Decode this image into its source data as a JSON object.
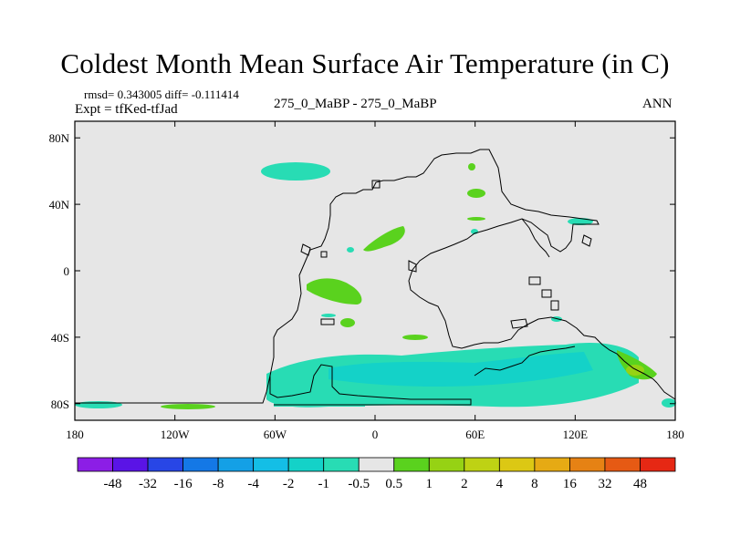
{
  "title": "Coldest Month Mean Surface Air Temperature (in C)",
  "stats_line": "rmsd= 0.343005  diff= -0.111414",
  "experiment_line": "Expt = tfKed-tfJad",
  "center_label": "275_0_MaBP - 275_0_MaBP",
  "period_label": "ANN",
  "map": {
    "background_color": "#e6e6e6",
    "lon_range": [
      -180,
      180
    ],
    "lat_range": [
      -90,
      90
    ],
    "x_ticks": [
      {
        "lon": -180,
        "label": "180"
      },
      {
        "lon": -120,
        "label": "120W"
      },
      {
        "lon": -60,
        "label": "60W"
      },
      {
        "lon": 0,
        "label": "0"
      },
      {
        "lon": 60,
        "label": "60E"
      },
      {
        "lon": 120,
        "label": "120E"
      },
      {
        "lon": 180,
        "label": "180"
      }
    ],
    "y_ticks": [
      {
        "lat": 80,
        "label": "80N"
      },
      {
        "lat": 40,
        "label": "40N"
      },
      {
        "lat": 0,
        "label": "0"
      },
      {
        "lat": -40,
        "label": "40S"
      },
      {
        "lat": -80,
        "label": "80S"
      }
    ]
  },
  "colorbar": {
    "colors": [
      "#8c1ee6",
      "#5a14e6",
      "#2846e6",
      "#1478e6",
      "#14a0e6",
      "#14bee6",
      "#14d2c8",
      "#28dcb4",
      "#e6e6e6",
      "#5ad21e",
      "#96d214",
      "#bed214",
      "#dcc814",
      "#e6aa14",
      "#e68214",
      "#e65a14",
      "#e62814"
    ],
    "labels": [
      "-48",
      "-32",
      "-16",
      "-8",
      "-4",
      "-2",
      "-1",
      "-0.5",
      "0.5",
      "1",
      "2",
      "4",
      "8",
      "16",
      "32",
      "48"
    ]
  }
}
